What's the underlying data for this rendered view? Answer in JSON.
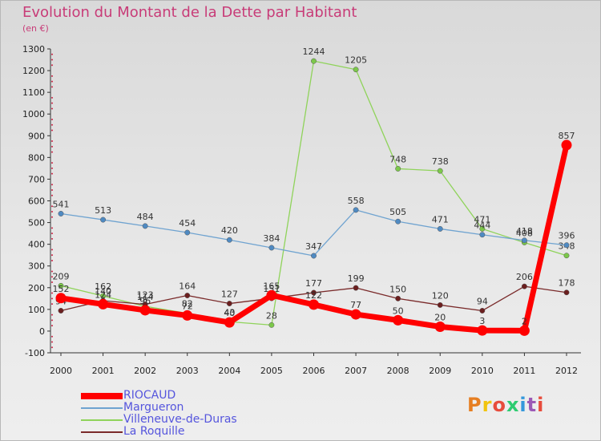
{
  "title": "Evolution du Montant de la Dette par Habitant",
  "subtitle": "(en €)",
  "logo": {
    "text": "Proxiti",
    "colors": [
      "#e67e22",
      "#f1c40f",
      "#e74c3c",
      "#2ecc71",
      "#3498db",
      "#9b59b6",
      "#e74c3c"
    ]
  },
  "chart_data": {
    "type": "line",
    "x": [
      2000,
      2001,
      2002,
      2003,
      2004,
      2005,
      2006,
      2007,
      2008,
      2009,
      2010,
      2011,
      2012
    ],
    "ylim": [
      -100,
      1300
    ],
    "yticks": [
      -100,
      0,
      100,
      200,
      300,
      400,
      500,
      600,
      700,
      800,
      900,
      1000,
      1100,
      1200,
      1300
    ],
    "grid": false,
    "legend_position": "bottom-left",
    "series": [
      {
        "name": "Villeneuve-de-Duras",
        "color": "#8fd35a",
        "marker": "#7cc84a",
        "values": [
          209,
          162,
          114,
          82,
          43,
          28,
          1244,
          1205,
          748,
          738,
          471,
          408,
          348
        ]
      },
      {
        "name": "Margueron",
        "color": "#6fa3d0",
        "marker": "#4f8ac2",
        "values": [
          541,
          513,
          484,
          454,
          420,
          384,
          347,
          558,
          505,
          471,
          444,
          418,
          396
        ]
      },
      {
        "name": "La Roquille",
        "color": "#7a2a2a",
        "marker": "#6b1f1f",
        "values": [
          94,
          140,
          123,
          164,
          127,
          151,
          177,
          199,
          150,
          120,
          94,
          206,
          178
        ]
      },
      {
        "name": "RIOCAUD",
        "color": "#ff0000",
        "marker": "#ff0000",
        "values": [
          152,
          124,
          96,
          72,
          40,
          165,
          122,
          77,
          50,
          20,
          3,
          2,
          857
        ]
      }
    ]
  }
}
